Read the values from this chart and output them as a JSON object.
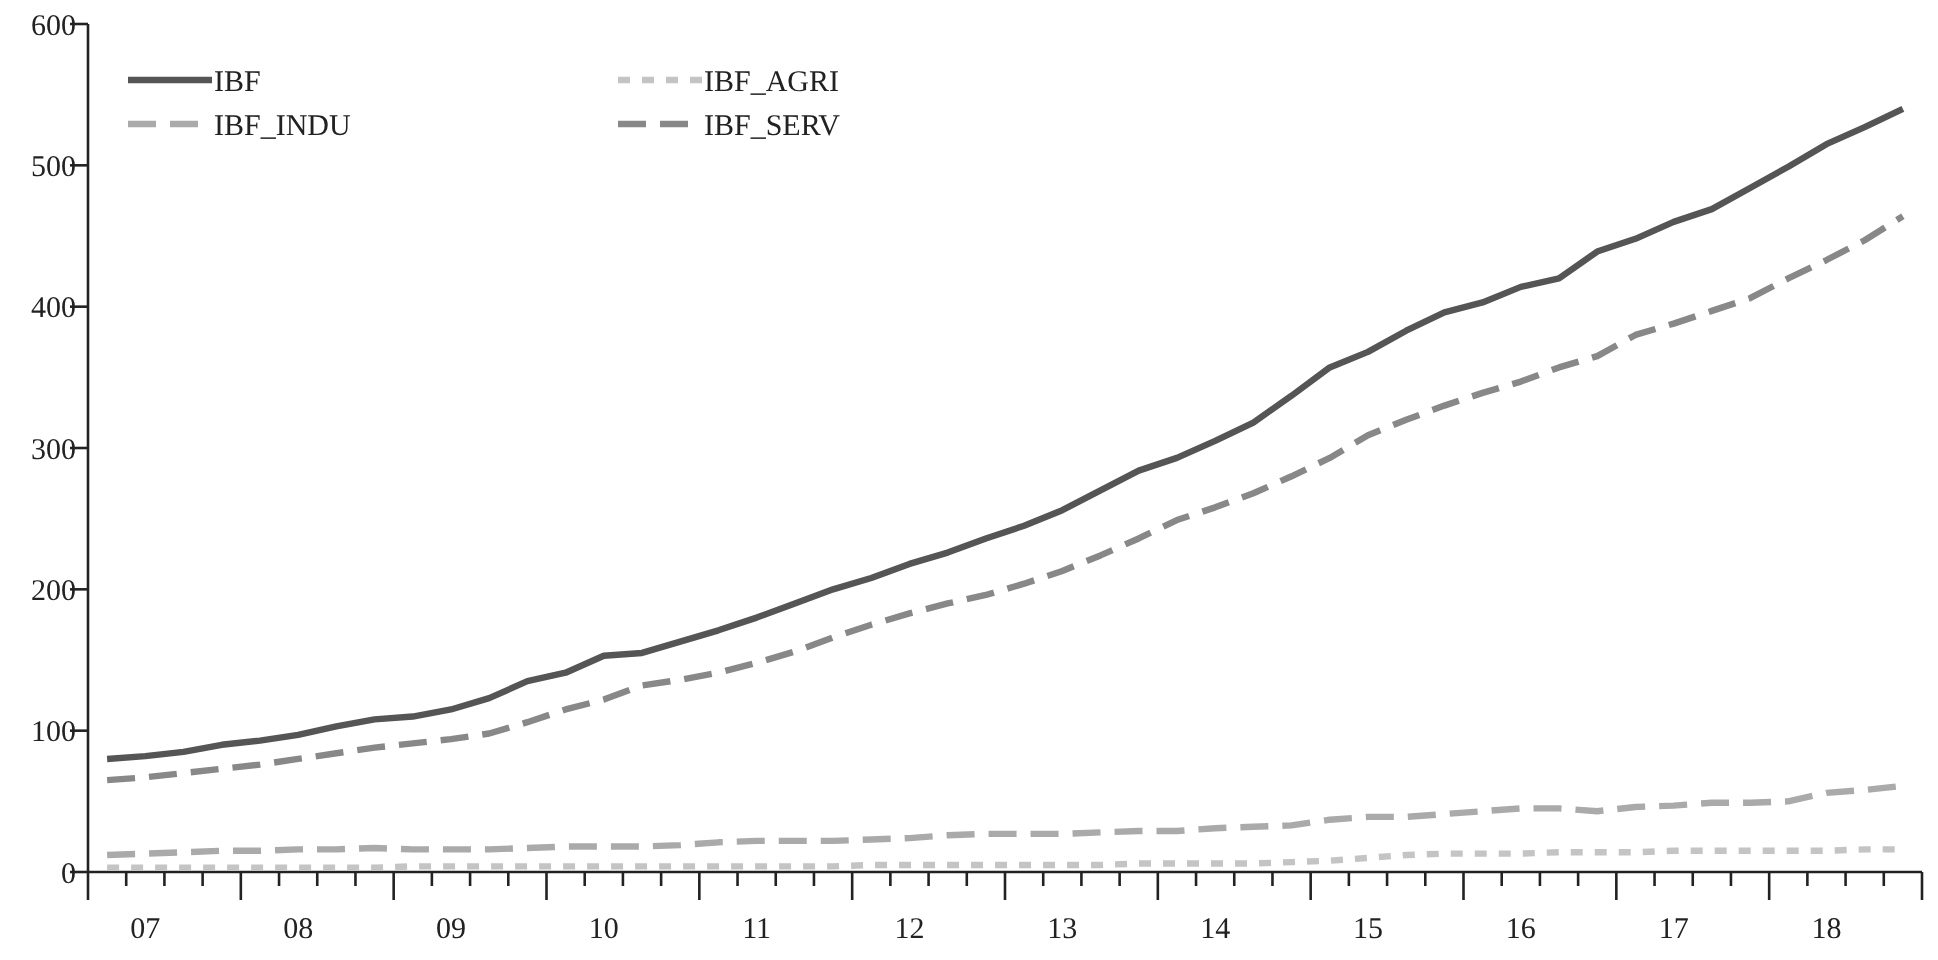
{
  "chart_data": {
    "type": "line",
    "categories": [
      null,
      "07",
      null,
      null,
      null,
      "08",
      null,
      null,
      null,
      "09",
      null,
      null,
      null,
      "10",
      null,
      null,
      null,
      "11",
      null,
      null,
      null,
      "12",
      null,
      null,
      null,
      "13",
      null,
      null,
      null,
      "14",
      null,
      null,
      null,
      "15",
      null,
      null,
      null,
      "16",
      null,
      null,
      null,
      "17",
      null,
      null,
      null,
      "18",
      null,
      null
    ],
    "ylim": [
      0,
      600
    ],
    "yticks": [
      0,
      100,
      200,
      300,
      400,
      500,
      600
    ],
    "grid": false,
    "legend": "top left",
    "marker": "none",
    "series": [
      {
        "name": "IBF",
        "color": "#555555",
        "line_style": "solid",
        "values": [
          80,
          82,
          85,
          90,
          93,
          97,
          103,
          108,
          110,
          115,
          123,
          135,
          141,
          153,
          155,
          163,
          171,
          180,
          190,
          200,
          208,
          218,
          226,
          236,
          245,
          256,
          270,
          284,
          293,
          305,
          318,
          337,
          357,
          368,
          383,
          396,
          403,
          414,
          420,
          439,
          448,
          460,
          469,
          484,
          499,
          515,
          527,
          540
        ]
      },
      {
        "name": "IBF_AGRI",
        "color": "#c4c4c4",
        "line_style": "dotted",
        "values": [
          3,
          3,
          3,
          3,
          3,
          3,
          3,
          3,
          4,
          4,
          4,
          4,
          4,
          4,
          4,
          4,
          4,
          4,
          4,
          4,
          5,
          5,
          5,
          5,
          5,
          5,
          5,
          6,
          6,
          6,
          6,
          7,
          8,
          10,
          12,
          13,
          13,
          13,
          14,
          14,
          14,
          15,
          15,
          15,
          15,
          15,
          16,
          16
        ]
      },
      {
        "name": "IBF_INDU",
        "color": "#aaaaaa",
        "line_style": "dashed",
        "values": [
          12,
          13,
          14,
          15,
          15,
          16,
          16,
          17,
          16,
          16,
          16,
          17,
          18,
          18,
          18,
          19,
          21,
          22,
          22,
          22,
          23,
          24,
          26,
          27,
          27,
          27,
          28,
          29,
          29,
          31,
          32,
          33,
          37,
          39,
          39,
          41,
          43,
          45,
          45,
          43,
          46,
          47,
          49,
          49,
          50,
          56,
          58,
          61
        ]
      },
      {
        "name": "IBF_SERV",
        "color": "#888888",
        "line_style": "dashed",
        "values": [
          65,
          67,
          70,
          73,
          76,
          80,
          84,
          88,
          91,
          94,
          98,
          106,
          115,
          122,
          132,
          136,
          141,
          148,
          156,
          166,
          175,
          183,
          190,
          196,
          204,
          213,
          224,
          236,
          249,
          258,
          268,
          280,
          293,
          309,
          320,
          330,
          339,
          347,
          357,
          365,
          380,
          388,
          397,
          406,
          420,
          433,
          447,
          464
        ]
      }
    ]
  }
}
